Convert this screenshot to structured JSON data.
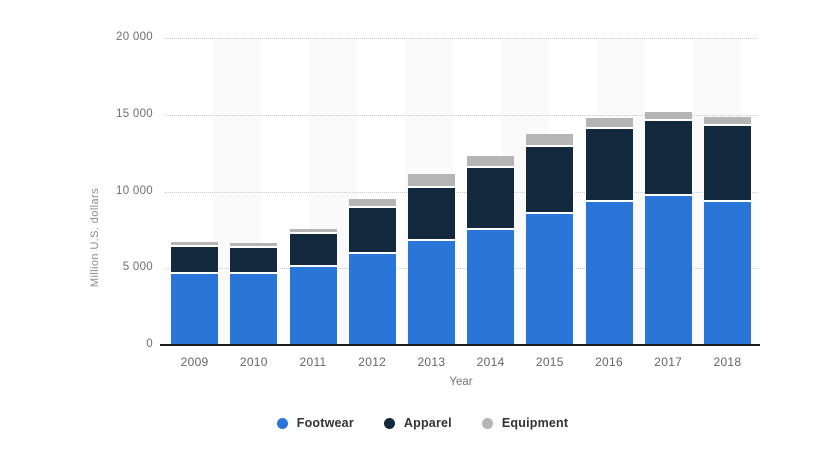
{
  "chart_data": {
    "type": "bar",
    "stacked": true,
    "title": "",
    "xlabel": "Year",
    "ylabel": "Million U.S. dollars",
    "ylim": [
      0,
      20000
    ],
    "grid": "horizontal-dotted",
    "legend_position": "bottom",
    "categories": [
      "2009",
      "2010",
      "2011",
      "2012",
      "2013",
      "2014",
      "2015",
      "2016",
      "2017",
      "2018"
    ],
    "series": [
      {
        "name": "Footwear",
        "color": "#2a76d8",
        "values": [
          4650,
          4600,
          5110,
          5950,
          6800,
          7495,
          8550,
          9299,
          9684,
          9322
        ]
      },
      {
        "name": "Apparel",
        "color": "#13293e",
        "values": [
          1730,
          1730,
          2105,
          2980,
          3450,
          4027,
          4370,
          4746,
          4906,
          4938
        ]
      },
      {
        "name": "Equipment",
        "color": "#b5b5b5",
        "values": [
          300,
          300,
          365,
          570,
          860,
          777,
          830,
          717,
          626,
          596
        ]
      }
    ],
    "y_ticks": [
      {
        "label": "20 000",
        "value": 20000
      },
      {
        "label": "15 000",
        "value": 15000
      },
      {
        "label": "10 000",
        "value": 10000
      },
      {
        "label": "5 000",
        "value": 5000
      },
      {
        "label": "0",
        "value": 0
      }
    ]
  },
  "axes": {
    "y_title": "Million U.S. dollars",
    "x_title": "Year"
  },
  "legend": {
    "items": [
      {
        "label": "Footwear",
        "color": "#2a76d8"
      },
      {
        "label": "Apparel",
        "color": "#13293e"
      },
      {
        "label": "Equipment",
        "color": "#b5b5b5"
      }
    ]
  },
  "colors": {
    "footwear": "#2a76d8",
    "apparel": "#13293e",
    "equipment": "#b5b5b5",
    "stripe": "#fafafa",
    "gridline": "#cccccc",
    "axis_line": "#1d1d1d",
    "tick_text": "#6f6f6f",
    "legend_text": "#333333"
  }
}
